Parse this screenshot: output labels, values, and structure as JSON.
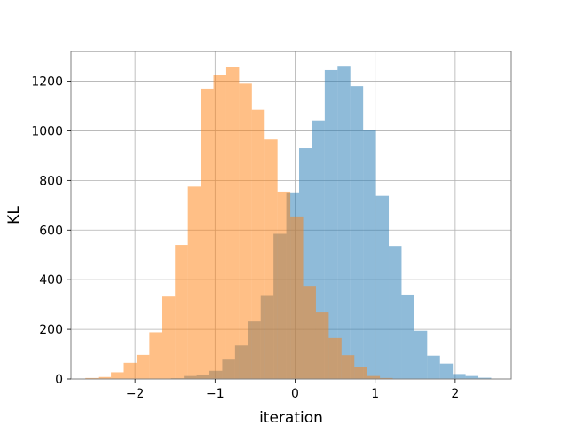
{
  "chart_data": {
    "type": "bar",
    "subtype": "overlapping-histogram",
    "title": "",
    "xlabel": "iteration",
    "ylabel": "KL",
    "xlim": [
      -2.8,
      2.7
    ],
    "ylim": [
      0,
      1320
    ],
    "xticks": [
      -2,
      -1,
      0,
      1,
      2
    ],
    "xtick_labels": [
      "−2",
      "−1",
      "0",
      "1",
      "2"
    ],
    "yticks": [
      0,
      200,
      400,
      600,
      800,
      1000,
      1200
    ],
    "ytick_labels": [
      "0",
      "200",
      "400",
      "600",
      "800",
      "1000",
      "1200"
    ],
    "grid": true,
    "legend": "none",
    "series": [
      {
        "color": "#1f77b4",
        "alpha": 0.5,
        "bin_edges": [
          -1.55,
          -1.39,
          -1.23,
          -1.07,
          -0.91,
          -0.75,
          -0.59,
          -0.43,
          -0.27,
          -0.11,
          0.05,
          0.21,
          0.37,
          0.53,
          0.69,
          0.85,
          1.01,
          1.17,
          1.33,
          1.49,
          1.65,
          1.81,
          1.97,
          2.13,
          2.29,
          2.45
        ],
        "counts": [
          3,
          12,
          18,
          33,
          78,
          135,
          232,
          338,
          585,
          752,
          930,
          1042,
          1245,
          1262,
          1180,
          1002,
          738,
          536,
          340,
          194,
          94,
          62,
          20,
          12,
          5
        ]
      },
      {
        "color": "#ff7f0e",
        "alpha": 0.5,
        "bin_edges": [
          -2.62,
          -2.46,
          -2.3,
          -2.14,
          -1.98,
          -1.82,
          -1.66,
          -1.5,
          -1.34,
          -1.18,
          -1.02,
          -0.86,
          -0.7,
          -0.54,
          -0.38,
          -0.22,
          -0.06,
          0.1,
          0.26,
          0.42,
          0.58,
          0.74,
          0.9,
          1.06,
          1.22
        ],
        "counts": [
          4,
          8,
          27,
          65,
          97,
          188,
          332,
          540,
          775,
          1170,
          1225,
          1258,
          1190,
          1085,
          965,
          755,
          655,
          375,
          268,
          165,
          96,
          50,
          12,
          4
        ]
      }
    ]
  }
}
